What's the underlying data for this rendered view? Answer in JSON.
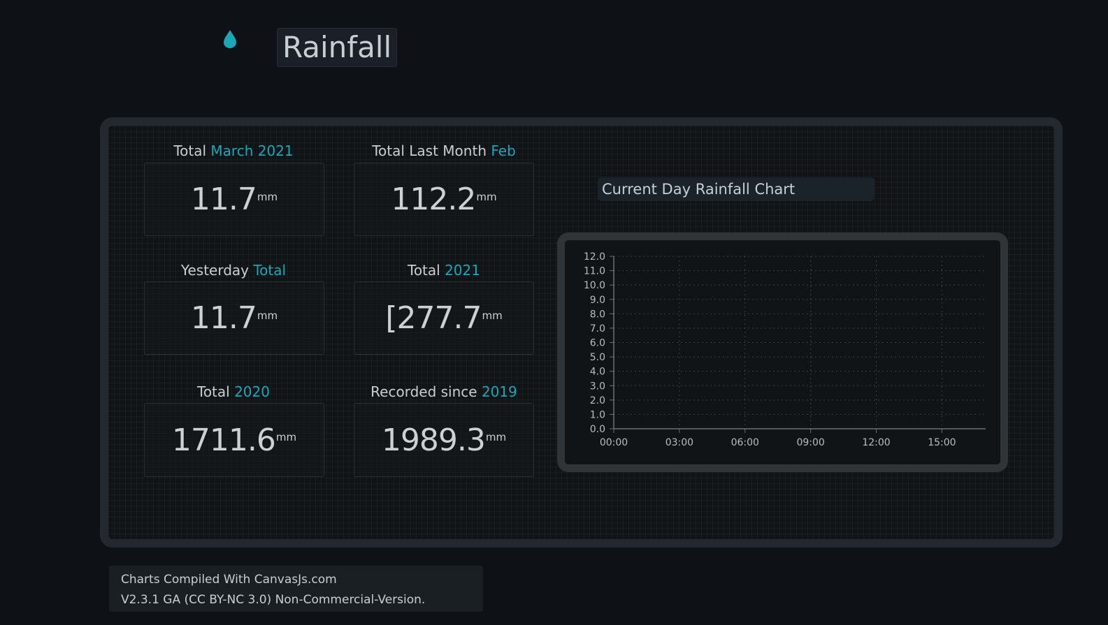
{
  "header": {
    "title": "Rainfall",
    "icon": "raindrop-icon",
    "icon_color": "#1aa7b8"
  },
  "stats": [
    {
      "label": "Total",
      "accent": "March 2021",
      "value": "11.7",
      "unit": "mm"
    },
    {
      "label": "Total Last Month",
      "accent": "Feb",
      "value": "112.2",
      "unit": "mm"
    },
    {
      "label": "Yesterday",
      "accent": "Total",
      "value": "11.7",
      "unit": "mm"
    },
    {
      "label": "Total",
      "accent": "2021",
      "value": "[277.7",
      "unit": "mm"
    },
    {
      "label": "Total",
      "accent": "2020",
      "value": "1711.6",
      "unit": "mm"
    },
    {
      "label": "Recorded since",
      "accent": "2019",
      "value": "1989.3",
      "unit": "mm"
    }
  ],
  "chart": {
    "title": "Current Day Rainfall Chart"
  },
  "chart_data": {
    "type": "line",
    "title": "Current Day Rainfall Chart",
    "xlabel": "",
    "ylabel": "",
    "x_ticks": [
      "00:00",
      "03:00",
      "06:00",
      "09:00",
      "12:00",
      "15:00"
    ],
    "y_ticks": [
      "0.0",
      "1.0",
      "2.0",
      "3.0",
      "4.0",
      "5.0",
      "6.0",
      "7.0",
      "8.0",
      "9.0",
      "10.0",
      "11.0",
      "12.0"
    ],
    "ylim": [
      0,
      12
    ],
    "xlim_hours": [
      0,
      17
    ],
    "series": [],
    "grid": true
  },
  "footer": {
    "line1": "Charts Compiled With CanvasJs.com",
    "line2": "V2.3.1 GA (CC BY-NC 3.0) Non-Commercial-Version."
  },
  "colors": {
    "accent": "#1aa7b8",
    "background": "#0e1216",
    "panel_border": "#23292f"
  }
}
